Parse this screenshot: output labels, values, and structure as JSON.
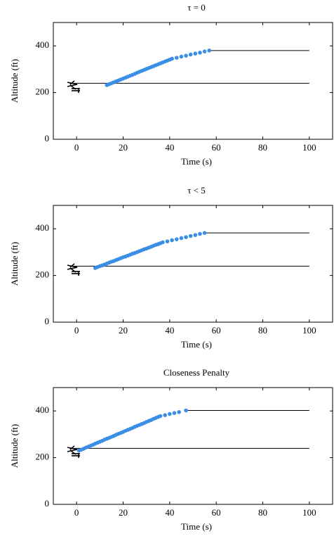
{
  "chart_data": [
    {
      "type": "line",
      "title": "τ = 0",
      "xlabel": "Time (s)",
      "ylabel": "Altitude (ft)",
      "xlim": [
        -10,
        110
      ],
      "ylim": [
        0,
        500
      ],
      "xticks": [
        0,
        20,
        40,
        60,
        80,
        100
      ],
      "yticks": [
        0,
        200,
        400
      ],
      "series": [
        {
          "color": "#000000",
          "style": "line",
          "x": [
            -3,
            100
          ],
          "values": [
            240,
            240
          ]
        },
        {
          "color": "#000000",
          "style": "line",
          "x": [
            57,
            100
          ],
          "values": [
            380,
            380
          ]
        },
        {
          "color": "#3a8ee6",
          "style": "dots",
          "x": [
            13,
            14,
            15,
            16,
            17,
            18,
            19,
            20,
            21,
            22,
            23,
            24,
            25,
            26,
            27,
            28,
            29,
            30,
            31,
            32,
            33,
            34,
            35,
            36,
            37,
            38,
            39,
            40,
            41,
            43,
            45,
            47,
            49,
            51,
            53,
            55,
            57
          ],
          "values": [
            232,
            236,
            240,
            244,
            248,
            252,
            256,
            260,
            264,
            268,
            272,
            276,
            280,
            285,
            289,
            293,
            297,
            301,
            305,
            309,
            313,
            317,
            321,
            325,
            329,
            333,
            337,
            341,
            345,
            349,
            354,
            358,
            363,
            367,
            371,
            376,
            380
          ]
        }
      ]
    },
    {
      "type": "line",
      "title": "τ < 5",
      "xlabel": "Time (s)",
      "ylabel": "Altitude (ft)",
      "xlim": [
        -10,
        110
      ],
      "ylim": [
        0,
        500
      ],
      "xticks": [
        0,
        20,
        40,
        60,
        80,
        100
      ],
      "yticks": [
        0,
        200,
        400
      ],
      "series": [
        {
          "color": "#000000",
          "style": "line",
          "x": [
            -3,
            100
          ],
          "values": [
            240,
            240
          ]
        },
        {
          "color": "#000000",
          "style": "line",
          "x": [
            55,
            100
          ],
          "values": [
            382,
            382
          ]
        },
        {
          "color": "#3a8ee6",
          "style": "dots",
          "x": [
            8,
            9,
            10,
            11,
            12,
            13,
            14,
            15,
            16,
            17,
            18,
            19,
            20,
            21,
            22,
            23,
            24,
            25,
            26,
            27,
            28,
            29,
            30,
            31,
            32,
            33,
            34,
            35,
            36,
            37,
            39,
            41,
            43,
            45,
            47,
            49,
            51,
            53,
            55
          ],
          "values": [
            232,
            236,
            240,
            243,
            247,
            251,
            255,
            259,
            262,
            266,
            270,
            274,
            278,
            281,
            285,
            289,
            293,
            296,
            300,
            304,
            308,
            312,
            315,
            319,
            323,
            327,
            331,
            334,
            338,
            342,
            346,
            351,
            355,
            360,
            364,
            369,
            373,
            378,
            382
          ]
        }
      ]
    },
    {
      "type": "line",
      "title": "Closeness Penalty",
      "xlabel": "Time (s)",
      "ylabel": "Altitude (ft)",
      "xlim": [
        -10,
        110
      ],
      "ylim": [
        0,
        500
      ],
      "xticks": [
        0,
        20,
        40,
        60,
        80,
        100
      ],
      "yticks": [
        0,
        200,
        400
      ],
      "series": [
        {
          "color": "#000000",
          "style": "line",
          "x": [
            -3,
            100
          ],
          "values": [
            240,
            240
          ]
        },
        {
          "color": "#000000",
          "style": "line",
          "x": [
            47,
            100
          ],
          "values": [
            402,
            402
          ]
        },
        {
          "color": "#3a8ee6",
          "style": "dots",
          "x": [
            1,
            2,
            3,
            4,
            5,
            6,
            7,
            8,
            9,
            10,
            11,
            12,
            13,
            14,
            15,
            16,
            17,
            18,
            19,
            20,
            21,
            22,
            23,
            24,
            25,
            26,
            27,
            28,
            29,
            30,
            31,
            32,
            33,
            34,
            35,
            36,
            38,
            40,
            42,
            44,
            47
          ],
          "values": [
            230,
            234,
            238,
            243,
            247,
            251,
            255,
            260,
            264,
            268,
            272,
            277,
            281,
            285,
            289,
            293,
            298,
            302,
            306,
            310,
            315,
            319,
            323,
            327,
            332,
            336,
            340,
            344,
            348,
            353,
            357,
            361,
            366,
            370,
            374,
            378,
            382,
            387,
            391,
            395,
            402
          ]
        }
      ]
    }
  ]
}
